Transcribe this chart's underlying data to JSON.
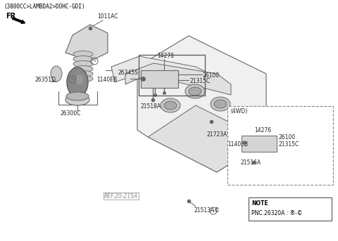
{
  "title": "(3800CC>LAMBDA2>DOHC-GDI)",
  "bg_color": "#ffffff",
  "text_color": "#000000",
  "labels": {
    "top_left": "(3800CC>LAMBDA2>DOHC-GDI)",
    "part_1011AC": "1011AC",
    "part_21723A": "21723A",
    "part_26345S": "26345S",
    "part_26351D": "26351D",
    "part_26300C": "26300C",
    "part_14276": "14276",
    "part_26100": "26100",
    "part_1140EB": "1140EB",
    "part_21315C": "21315C",
    "part_21518A": "21518A",
    "part_21516A": "21516A",
    "part_21513A": "21513A©",
    "ref_label": "REF.20-215A",
    "note_label": "NOTE",
    "note_pnc": "PNC.26320A : ®-©",
    "label_4wd": "(4WD)"
  },
  "colors": {
    "line": "#555555",
    "dgray": "#666666",
    "engine_face": "#f0f0f0",
    "engine_top": "#e0e0e0",
    "cyl_outer": "#c8c8c8",
    "cyl_inner": "#aaaaaa",
    "filter_dark": "#888888",
    "filter_light": "#d0d0d0",
    "part_fill": "#d5d5d5",
    "dashed_border": "#888888",
    "ref_color": "#888888"
  }
}
